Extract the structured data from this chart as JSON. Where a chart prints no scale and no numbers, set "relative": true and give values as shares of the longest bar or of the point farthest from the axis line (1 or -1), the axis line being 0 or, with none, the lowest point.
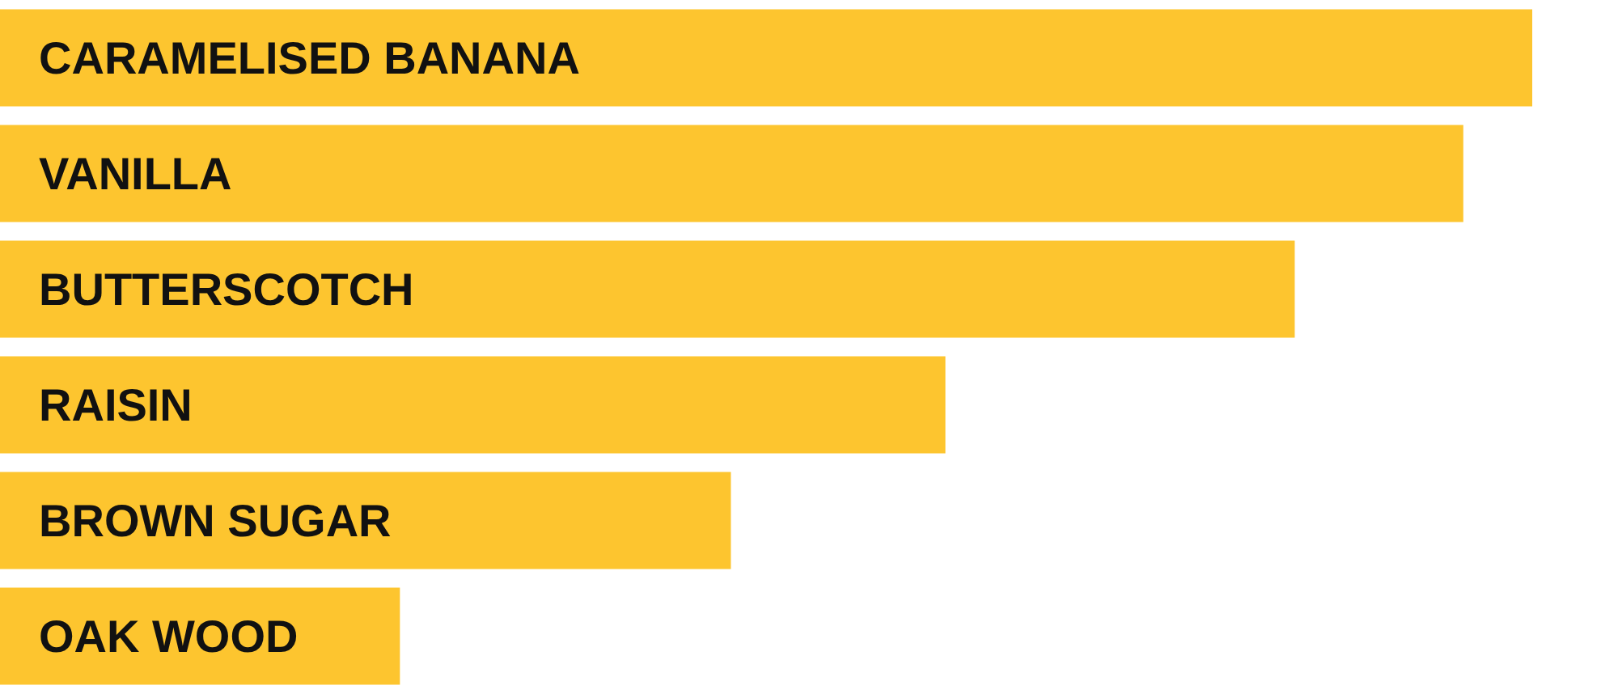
{
  "chart_data": {
    "type": "bar",
    "orientation": "horizontal",
    "relative": true,
    "categories": [
      "CARAMELISED BANANA",
      "VANILLA",
      "BUTTERSCOTCH",
      "RAISIN",
      "BROWN SUGAR",
      "OAK WOOD"
    ],
    "values": [
      1,
      0.955,
      0.845,
      0.617,
      0.477,
      0.261
    ],
    "color": "#fdc52f"
  }
}
